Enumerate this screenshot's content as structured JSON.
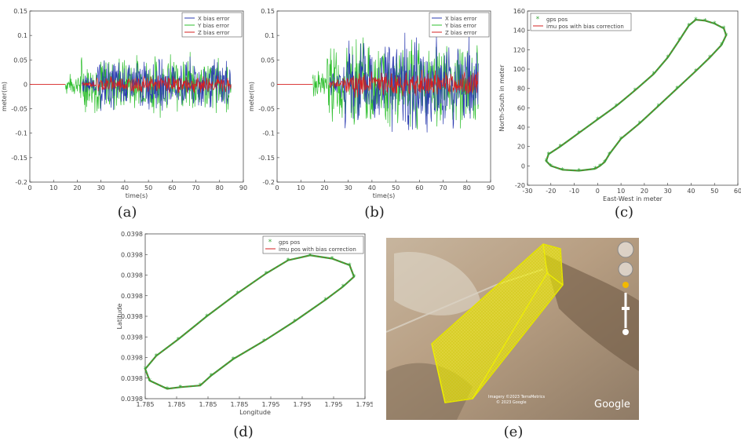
{
  "captions": {
    "a": "(a)",
    "b": "(b)",
    "c": "(c)",
    "d": "(d)",
    "e": "(e)"
  },
  "colors": {
    "x_series": "#2b3bb0",
    "y_series": "#2fbf2f",
    "z_series": "#d62020",
    "gps": "#3aa53a",
    "imu": "#d62020",
    "google_earth_volume": "#ffff00"
  },
  "chart_data": [
    {
      "id": "a",
      "type": "line",
      "xlabel": "time(s)",
      "ylabel": "meter(m)",
      "xlim": [
        0,
        90
      ],
      "ylim": [
        -0.2,
        0.15
      ],
      "xticks": [
        "0",
        "10",
        "20",
        "30",
        "40",
        "50",
        "60",
        "70",
        "80",
        "90"
      ],
      "yticks": [
        "0.15",
        "0.1",
        "0.05",
        "0",
        "-0.05",
        "-0.1",
        "-0.15",
        "-0.2"
      ],
      "legend": "top-right",
      "series": [
        {
          "name": "X bias error",
          "t_start": 22,
          "t_end": 85,
          "amplitude": 0.06,
          "peak": 0.1
        },
        {
          "name": "Y bias error",
          "t_start": 15,
          "t_end": 85,
          "amplitude": 0.07,
          "peak": 0.11
        },
        {
          "name": "Z bias error",
          "t_start": 22,
          "t_end": 85,
          "amplitude": 0.02,
          "peak": 0.03
        }
      ]
    },
    {
      "id": "b",
      "type": "line",
      "xlabel": "time(s)",
      "ylabel": "meter(m)",
      "xlim": [
        0,
        90
      ],
      "ylim": [
        -0.2,
        0.15
      ],
      "xticks": [
        "0",
        "10",
        "20",
        "30",
        "40",
        "50",
        "60",
        "70",
        "80",
        "90"
      ],
      "yticks": [
        "0.15",
        "0.1",
        "0.05",
        "0",
        "-0.05",
        "-0.1",
        "-0.15",
        "-0.2"
      ],
      "legend": "top-right",
      "series": [
        {
          "name": "X bias error",
          "t_start": 22,
          "t_end": 85,
          "amplitude": 0.11,
          "peak": 0.145
        },
        {
          "name": "Y bias error",
          "t_start": 15,
          "t_end": 85,
          "amplitude": 0.1,
          "peak": 0.13
        },
        {
          "name": "Z bias error",
          "t_start": 22,
          "t_end": 85,
          "amplitude": 0.03,
          "peak": 0.04
        }
      ]
    },
    {
      "id": "c",
      "type": "line",
      "xlabel": "East-West in meter",
      "ylabel": "North-South in meter",
      "xlim": [
        -30,
        60
      ],
      "ylim": [
        -20,
        160
      ],
      "xticks": [
        "-30",
        "-20",
        "-10",
        "0",
        "10",
        "20",
        "30",
        "40",
        "50",
        "60"
      ],
      "yticks": [
        "160",
        "140",
        "120",
        "100",
        "80",
        "60",
        "40",
        "20",
        "0",
        "-20"
      ],
      "legend": "top-left",
      "series": [
        {
          "name": "gps pos",
          "marker": "*",
          "points": [
            [
              -1,
              -3
            ],
            [
              -8,
              -5
            ],
            [
              -15,
              -4
            ],
            [
              -20,
              0
            ],
            [
              -22,
              5
            ],
            [
              -21,
              12
            ],
            [
              -16,
              20
            ],
            [
              -8,
              34
            ],
            [
              0,
              48
            ],
            [
              8,
              62
            ],
            [
              16,
              78
            ],
            [
              24,
              95
            ],
            [
              30,
              112
            ],
            [
              35,
              130
            ],
            [
              39,
              145
            ],
            [
              42,
              151
            ],
            [
              46,
              150
            ],
            [
              50,
              147
            ],
            [
              54,
              142
            ],
            [
              55,
              135
            ],
            [
              53,
              125
            ],
            [
              48,
              112
            ],
            [
              42,
              98
            ],
            [
              34,
              80
            ],
            [
              26,
              62
            ],
            [
              18,
              44
            ],
            [
              10,
              28
            ],
            [
              5,
              12
            ],
            [
              3,
              4
            ],
            [
              1,
              0
            ],
            [
              -1,
              -3
            ]
          ]
        },
        {
          "name": "imu pos with bias correction",
          "marker": "line",
          "points": [
            [
              -1,
              -3
            ],
            [
              -8,
              -5
            ],
            [
              -15,
              -4
            ],
            [
              -20,
              0
            ],
            [
              -22,
              5
            ],
            [
              -21,
              12
            ],
            [
              -16,
              20
            ],
            [
              -8,
              34
            ],
            [
              0,
              48
            ],
            [
              8,
              62
            ],
            [
              16,
              78
            ],
            [
              24,
              95
            ],
            [
              30,
              112
            ],
            [
              35,
              130
            ],
            [
              39,
              145
            ],
            [
              42,
              151
            ],
            [
              46,
              150
            ],
            [
              50,
              147
            ],
            [
              54,
              142
            ],
            [
              55,
              135
            ],
            [
              53,
              125
            ],
            [
              48,
              112
            ],
            [
              42,
              98
            ],
            [
              34,
              80
            ],
            [
              26,
              62
            ],
            [
              18,
              44
            ],
            [
              10,
              28
            ],
            [
              5,
              12
            ],
            [
              3,
              4
            ],
            [
              1,
              0
            ],
            [
              -1,
              -3
            ]
          ]
        }
      ]
    },
    {
      "id": "d",
      "type": "line",
      "xlabel": "Longitude",
      "ylabel": "Latitude",
      "xlim": [
        0,
        1
      ],
      "ylim": [
        0,
        1
      ],
      "xticks": [
        "1.785",
        "1.785",
        "1.785",
        "1.785",
        "1.795",
        "1.795",
        "1.795",
        "1.795"
      ],
      "yticks": [
        "0.0398",
        "0.0398",
        "0.0398",
        "0.0398",
        "0.0398",
        "0.0398",
        "0.0398",
        "0.0398",
        "0.0398"
      ],
      "legend": "top-right",
      "series": [
        {
          "name": "gps pos",
          "marker": "*",
          "points": [
            [
              0.16,
              0.07
            ],
            [
              0.1,
              0.06
            ],
            [
              0.02,
              0.11
            ],
            [
              0.0,
              0.18
            ],
            [
              0.05,
              0.26
            ],
            [
              0.15,
              0.36
            ],
            [
              0.28,
              0.5
            ],
            [
              0.42,
              0.64
            ],
            [
              0.55,
              0.76
            ],
            [
              0.65,
              0.84
            ],
            [
              0.75,
              0.87
            ],
            [
              0.85,
              0.85
            ],
            [
              0.93,
              0.81
            ],
            [
              0.95,
              0.74
            ],
            [
              0.9,
              0.68
            ],
            [
              0.82,
              0.6
            ],
            [
              0.68,
              0.47
            ],
            [
              0.54,
              0.35
            ],
            [
              0.4,
              0.24
            ],
            [
              0.3,
              0.14
            ],
            [
              0.25,
              0.08
            ],
            [
              0.16,
              0.07
            ]
          ]
        },
        {
          "name": "imu pos with bias correction",
          "marker": "line",
          "points": [
            [
              0.16,
              0.07
            ],
            [
              0.1,
              0.06
            ],
            [
              0.02,
              0.11
            ],
            [
              0.0,
              0.18
            ],
            [
              0.05,
              0.26
            ],
            [
              0.15,
              0.36
            ],
            [
              0.28,
              0.5
            ],
            [
              0.42,
              0.64
            ],
            [
              0.55,
              0.76
            ],
            [
              0.65,
              0.84
            ],
            [
              0.75,
              0.87
            ],
            [
              0.85,
              0.85
            ],
            [
              0.93,
              0.81
            ],
            [
              0.95,
              0.74
            ],
            [
              0.9,
              0.68
            ],
            [
              0.82,
              0.6
            ],
            [
              0.68,
              0.47
            ],
            [
              0.54,
              0.35
            ],
            [
              0.4,
              0.24
            ],
            [
              0.3,
              0.14
            ],
            [
              0.25,
              0.08
            ],
            [
              0.16,
              0.07
            ]
          ]
        }
      ]
    }
  ],
  "map_panel": {
    "credit_line_1": "Imagery ©2023 TerraMetrics",
    "credit_line_2": "© 2023 Google",
    "logo_text": "Google"
  }
}
